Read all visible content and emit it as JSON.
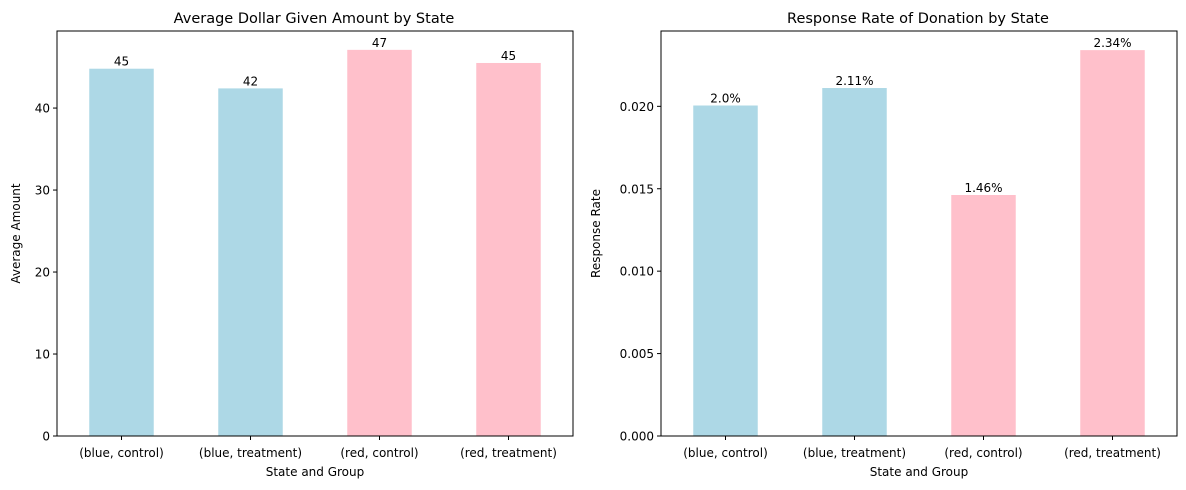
{
  "chart_data": [
    {
      "type": "bar",
      "title": "Average Dollar Given Amount by State",
      "xlabel": "State and Group",
      "ylabel": "Average Amount",
      "categories": [
        "(blue, control)",
        "(blue, treatment)",
        "(red, control)",
        "(red, treatment)"
      ],
      "values": [
        44.8,
        42.4,
        47.1,
        45.5
      ],
      "data_labels": [
        "45",
        "42",
        "47",
        "45"
      ],
      "bar_colors": [
        "#add8e6",
        "#add8e6",
        "#ffc0cb",
        "#ffc0cb"
      ],
      "ylim": [
        0,
        49.4
      ],
      "yticks": [
        0,
        10,
        20,
        30,
        40
      ],
      "ytick_labels": [
        "0",
        "10",
        "20",
        "30",
        "40"
      ],
      "grid": false,
      "legend": "none"
    },
    {
      "type": "bar",
      "title": "Response Rate of Donation by State",
      "xlabel": "State and Group",
      "ylabel": "Response Rate",
      "categories": [
        "(blue, control)",
        "(blue, treatment)",
        "(red, control)",
        "(red, treatment)"
      ],
      "values": [
        0.02005,
        0.02111,
        0.01462,
        0.02341
      ],
      "data_labels": [
        "2.0%",
        "2.11%",
        "1.46%",
        "2.34%"
      ],
      "bar_colors": [
        "#add8e6",
        "#add8e6",
        "#ffc0cb",
        "#ffc0cb"
      ],
      "ylim": [
        0,
        0.02457
      ],
      "yticks": [
        0,
        0.005,
        0.01,
        0.015,
        0.02
      ],
      "ytick_labels": [
        "0.000",
        "0.005",
        "0.010",
        "0.015",
        "0.020"
      ],
      "grid": false,
      "legend": "none"
    }
  ]
}
